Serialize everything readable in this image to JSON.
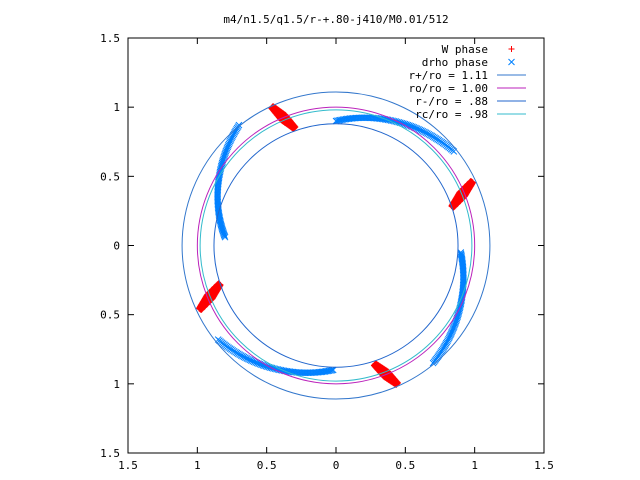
{
  "chart_data": {
    "type": "scatter",
    "title": "m4/n1.5/q1.5/r-+.80-j410/M0.01/512",
    "xlim": [
      -1.5,
      1.5
    ],
    "ylim": [
      -1.5,
      1.5
    ],
    "x_ticks": [
      {
        "value": -1.5,
        "label": "1.5"
      },
      {
        "value": -1.0,
        "label": "1"
      },
      {
        "value": -0.5,
        "label": "0.5"
      },
      {
        "value": 0.0,
        "label": "0"
      },
      {
        "value": 0.5,
        "label": "0.5"
      },
      {
        "value": 1.0,
        "label": "1"
      },
      {
        "value": 1.5,
        "label": "1.5"
      }
    ],
    "y_ticks": [
      {
        "value": 1.5,
        "label": "1.5"
      },
      {
        "value": 1.0,
        "label": "1"
      },
      {
        "value": 0.5,
        "label": "0.5"
      },
      {
        "value": 0.0,
        "label": "0"
      },
      {
        "value": -0.5,
        "label": "0.5"
      },
      {
        "value": -1.0,
        "label": "1"
      },
      {
        "value": -1.5,
        "label": "1.5"
      }
    ],
    "grid": false,
    "legend_position": "top-right",
    "series": [
      {
        "name": "W phase",
        "marker": "+",
        "color": "#ff0000",
        "segments": [
          {
            "from": [
              -0.46,
              1.0
            ],
            "to": [
              -0.3,
              0.85
            ]
          },
          {
            "from": [
              0.84,
              0.28
            ],
            "to": [
              0.98,
              0.46
            ]
          },
          {
            "from": [
              0.44,
              -1.0
            ],
            "to": [
              0.28,
              -0.86
            ]
          },
          {
            "from": [
              -0.84,
              -0.28
            ],
            "to": [
              -0.98,
              -0.46
            ]
          }
        ]
      },
      {
        "name": "drho phase",
        "marker": "x",
        "color": "#0080ff",
        "segments": [
          {
            "from": [
              -0.8,
              0.06
            ],
            "to": [
              -0.7,
              0.87
            ]
          },
          {
            "from": [
              0.0,
              0.9
            ],
            "to": [
              0.85,
              0.68
            ]
          },
          {
            "from": [
              0.9,
              -0.05
            ],
            "to": [
              0.7,
              -0.85
            ]
          },
          {
            "from": [
              -0.85,
              -0.68
            ],
            "to": [
              -0.02,
              -0.9
            ]
          }
        ]
      },
      {
        "name": "r+/ro = 1.11",
        "type": "circle",
        "radius": 1.11,
        "color": "#3377cc"
      },
      {
        "name": "ro/ro = 1.00",
        "type": "circle",
        "radius": 1.0,
        "color": "#bb22bb"
      },
      {
        "name": "r-/ro = .88",
        "type": "circle",
        "radius": 0.88,
        "color": "#2266cc"
      },
      {
        "name": "rc/ro = .98",
        "type": "circle",
        "radius": 0.98,
        "color": "#33bbcc"
      }
    ]
  }
}
